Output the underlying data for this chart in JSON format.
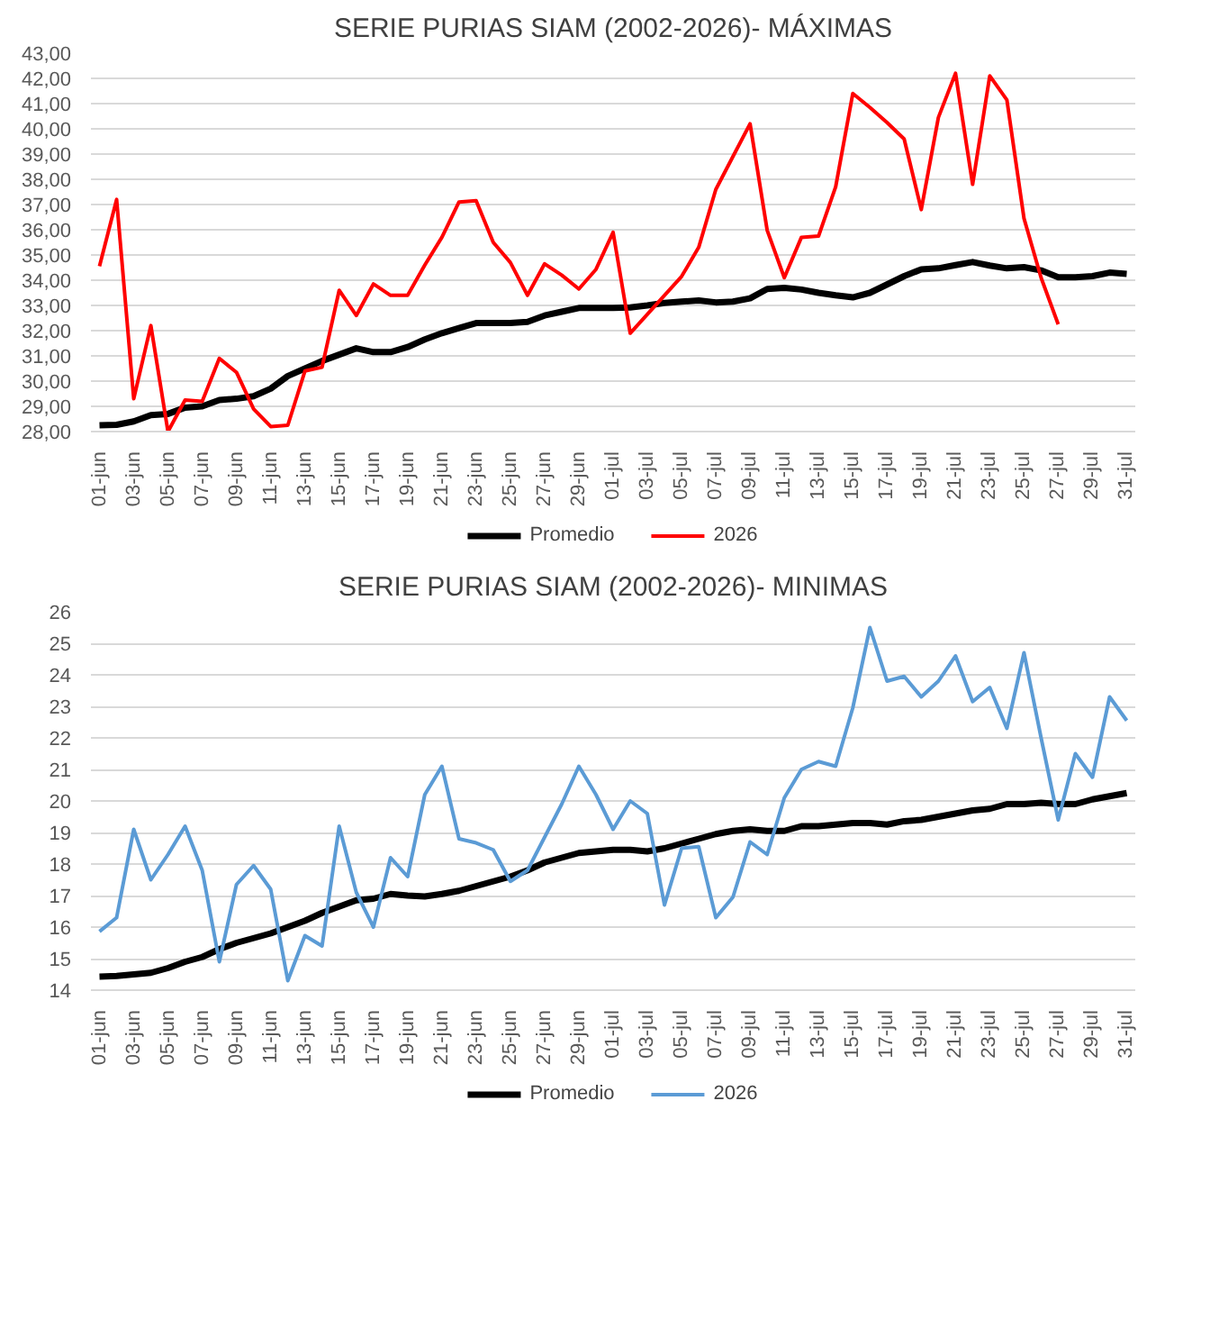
{
  "chart_data": [
    {
      "type": "line",
      "title": "SERIE PURIAS SIAM (2002-2026)- MÁXIMAS",
      "grid": "y",
      "legend": "bottom",
      "marker": "none",
      "line_style": "solid",
      "categories": [
        "01-jun",
        null,
        "03-jun",
        null,
        "05-jun",
        null,
        "07-jun",
        null,
        "09-jun",
        null,
        "11-jun",
        null,
        "13-jun",
        null,
        "15-jun",
        null,
        "17-jun",
        null,
        "19-jun",
        null,
        "21-jun",
        null,
        "23-jun",
        null,
        "25-jun",
        null,
        "27-jun",
        null,
        "29-jun",
        null,
        "01-jul",
        null,
        "03-jul",
        null,
        "05-jul",
        null,
        "07-jul",
        null,
        "09-jul",
        null,
        "11-jul",
        null,
        "13-jul",
        null,
        "15-jul",
        null,
        "17-jul",
        null,
        "19-jul",
        null,
        "21-jul",
        null,
        "23-jul",
        null,
        "25-jul",
        null,
        "27-jul",
        null,
        "29-jul",
        null,
        "31-jul"
      ],
      "ylim": [
        28,
        43
      ],
      "yticks": [
        {
          "value": 28,
          "label": "28,00"
        },
        {
          "value": 29,
          "label": "29,00"
        },
        {
          "value": 30,
          "label": "30,00"
        },
        {
          "value": 31,
          "label": "31,00"
        },
        {
          "value": 32,
          "label": "32,00"
        },
        {
          "value": 33,
          "label": "33,00"
        },
        {
          "value": 34,
          "label": "34,00"
        },
        {
          "value": 35,
          "label": "35,00"
        },
        {
          "value": 36,
          "label": "36,00"
        },
        {
          "value": 37,
          "label": "37,00"
        },
        {
          "value": 38,
          "label": "38,00"
        },
        {
          "value": 39,
          "label": "39,00"
        },
        {
          "value": 40,
          "label": "40,00"
        },
        {
          "value": 41,
          "label": "41,00"
        },
        {
          "value": 42,
          "label": "42,00"
        },
        {
          "value": 43,
          "label": "43,00"
        }
      ],
      "series": [
        {
          "name": "Promedio",
          "color": "#000000",
          "values": [
            28.25,
            28.27,
            28.4,
            28.65,
            28.7,
            28.95,
            29.0,
            29.25,
            29.3,
            29.4,
            29.7,
            30.2,
            30.5,
            30.8,
            31.05,
            31.3,
            31.15,
            31.15,
            31.35,
            31.65,
            31.9,
            32.1,
            32.3,
            32.3,
            32.3,
            32.35,
            32.6,
            32.75,
            32.9,
            32.9,
            32.9,
            32.92,
            33.0,
            33.1,
            33.15,
            33.2,
            33.12,
            33.15,
            33.28,
            33.65,
            33.7,
            33.63,
            33.5,
            33.4,
            33.32,
            33.5,
            33.83,
            34.16,
            34.43,
            34.47,
            34.6,
            34.72,
            34.58,
            34.47,
            34.52,
            34.39,
            34.12,
            34.12,
            34.16,
            34.3,
            34.25
          ]
        },
        {
          "name": "2026",
          "color": "#ff0000",
          "values": [
            34.55,
            37.2,
            29.3,
            32.2,
            28.0,
            29.25,
            29.2,
            30.9,
            30.35,
            28.9,
            28.2,
            28.25,
            30.4,
            30.55,
            33.6,
            32.6,
            33.85,
            33.4,
            33.4,
            34.6,
            35.7,
            37.1,
            37.15,
            35.5,
            34.7,
            33.4,
            34.65,
            34.2,
            33.65,
            34.43,
            35.9,
            31.9,
            32.65,
            33.4,
            34.15,
            35.3,
            37.6,
            38.9,
            40.2,
            35.98,
            34.1,
            35.7,
            35.75,
            37.7,
            41.4,
            40.85,
            40.25,
            39.6,
            36.8,
            40.45,
            42.2,
            37.8,
            42.1,
            41.15,
            36.45,
            34.1,
            32.25,
            null,
            null,
            null,
            null
          ]
        }
      ]
    },
    {
      "type": "line",
      "title": "SERIE PURIAS SIAM (2002-2026)- MINIMAS",
      "grid": "y",
      "legend": "bottom",
      "marker": "none",
      "line_style": "solid",
      "categories": [
        "01-jun",
        null,
        "03-jun",
        null,
        "05-jun",
        null,
        "07-jun",
        null,
        "09-jun",
        null,
        "11-jun",
        null,
        "13-jun",
        null,
        "15-jun",
        null,
        "17-jun",
        null,
        "19-jun",
        null,
        "21-jun",
        null,
        "23-jun",
        null,
        "25-jun",
        null,
        "27-jun",
        null,
        "29-jun",
        null,
        "01-jul",
        null,
        "03-jul",
        null,
        "05-jul",
        null,
        "07-jul",
        null,
        "09-jul",
        null,
        "11-jul",
        null,
        "13-jul",
        null,
        "15-jul",
        null,
        "17-jul",
        null,
        "19-jul",
        null,
        "21-jul",
        null,
        "23-jul",
        null,
        "25-jul",
        null,
        "27-jul",
        null,
        "29-jul",
        null,
        "31-jul"
      ],
      "ylim": [
        14,
        26
      ],
      "yticks": [
        14,
        15,
        16,
        17,
        18,
        19,
        20,
        21,
        22,
        23,
        24,
        25,
        26
      ],
      "series": [
        {
          "name": "Promedio",
          "color": "#000000",
          "values": [
            14.43,
            14.45,
            14.5,
            14.55,
            14.7,
            14.9,
            15.05,
            15.3,
            15.5,
            15.65,
            15.8,
            16.0,
            16.2,
            16.45,
            16.65,
            16.85,
            16.9,
            17.05,
            17.0,
            16.97,
            17.05,
            17.15,
            17.3,
            17.45,
            17.6,
            17.8,
            18.05,
            18.2,
            18.35,
            18.4,
            18.45,
            18.45,
            18.4,
            18.5,
            18.65,
            18.8,
            18.95,
            19.05,
            19.1,
            19.05,
            19.05,
            19.2,
            19.2,
            19.25,
            19.3,
            19.3,
            19.25,
            19.36,
            19.4,
            19.5,
            19.6,
            19.7,
            19.75,
            19.9,
            19.9,
            19.94,
            19.9,
            19.9,
            20.05,
            20.15,
            20.25
          ]
        },
        {
          "name": "2026",
          "color": "#5b9bd5",
          "values": [
            15.86,
            16.3,
            19.1,
            17.5,
            18.3,
            19.2,
            17.8,
            14.9,
            17.35,
            17.95,
            17.2,
            14.3,
            15.73,
            15.4,
            19.2,
            17.1,
            16.0,
            18.2,
            17.6,
            20.2,
            21.1,
            18.8,
            18.67,
            18.45,
            17.45,
            17.8,
            18.85,
            19.9,
            21.1,
            20.2,
            19.1,
            20.0,
            19.6,
            16.7,
            18.5,
            18.55,
            16.3,
            16.95,
            18.7,
            18.3,
            20.1,
            21.0,
            21.25,
            21.1,
            22.95,
            25.5,
            23.8,
            23.95,
            23.3,
            23.8,
            24.6,
            23.15,
            23.6,
            22.3,
            24.7,
            22.0,
            19.4,
            21.5,
            20.75,
            23.3,
            22.55
          ]
        }
      ]
    }
  ]
}
